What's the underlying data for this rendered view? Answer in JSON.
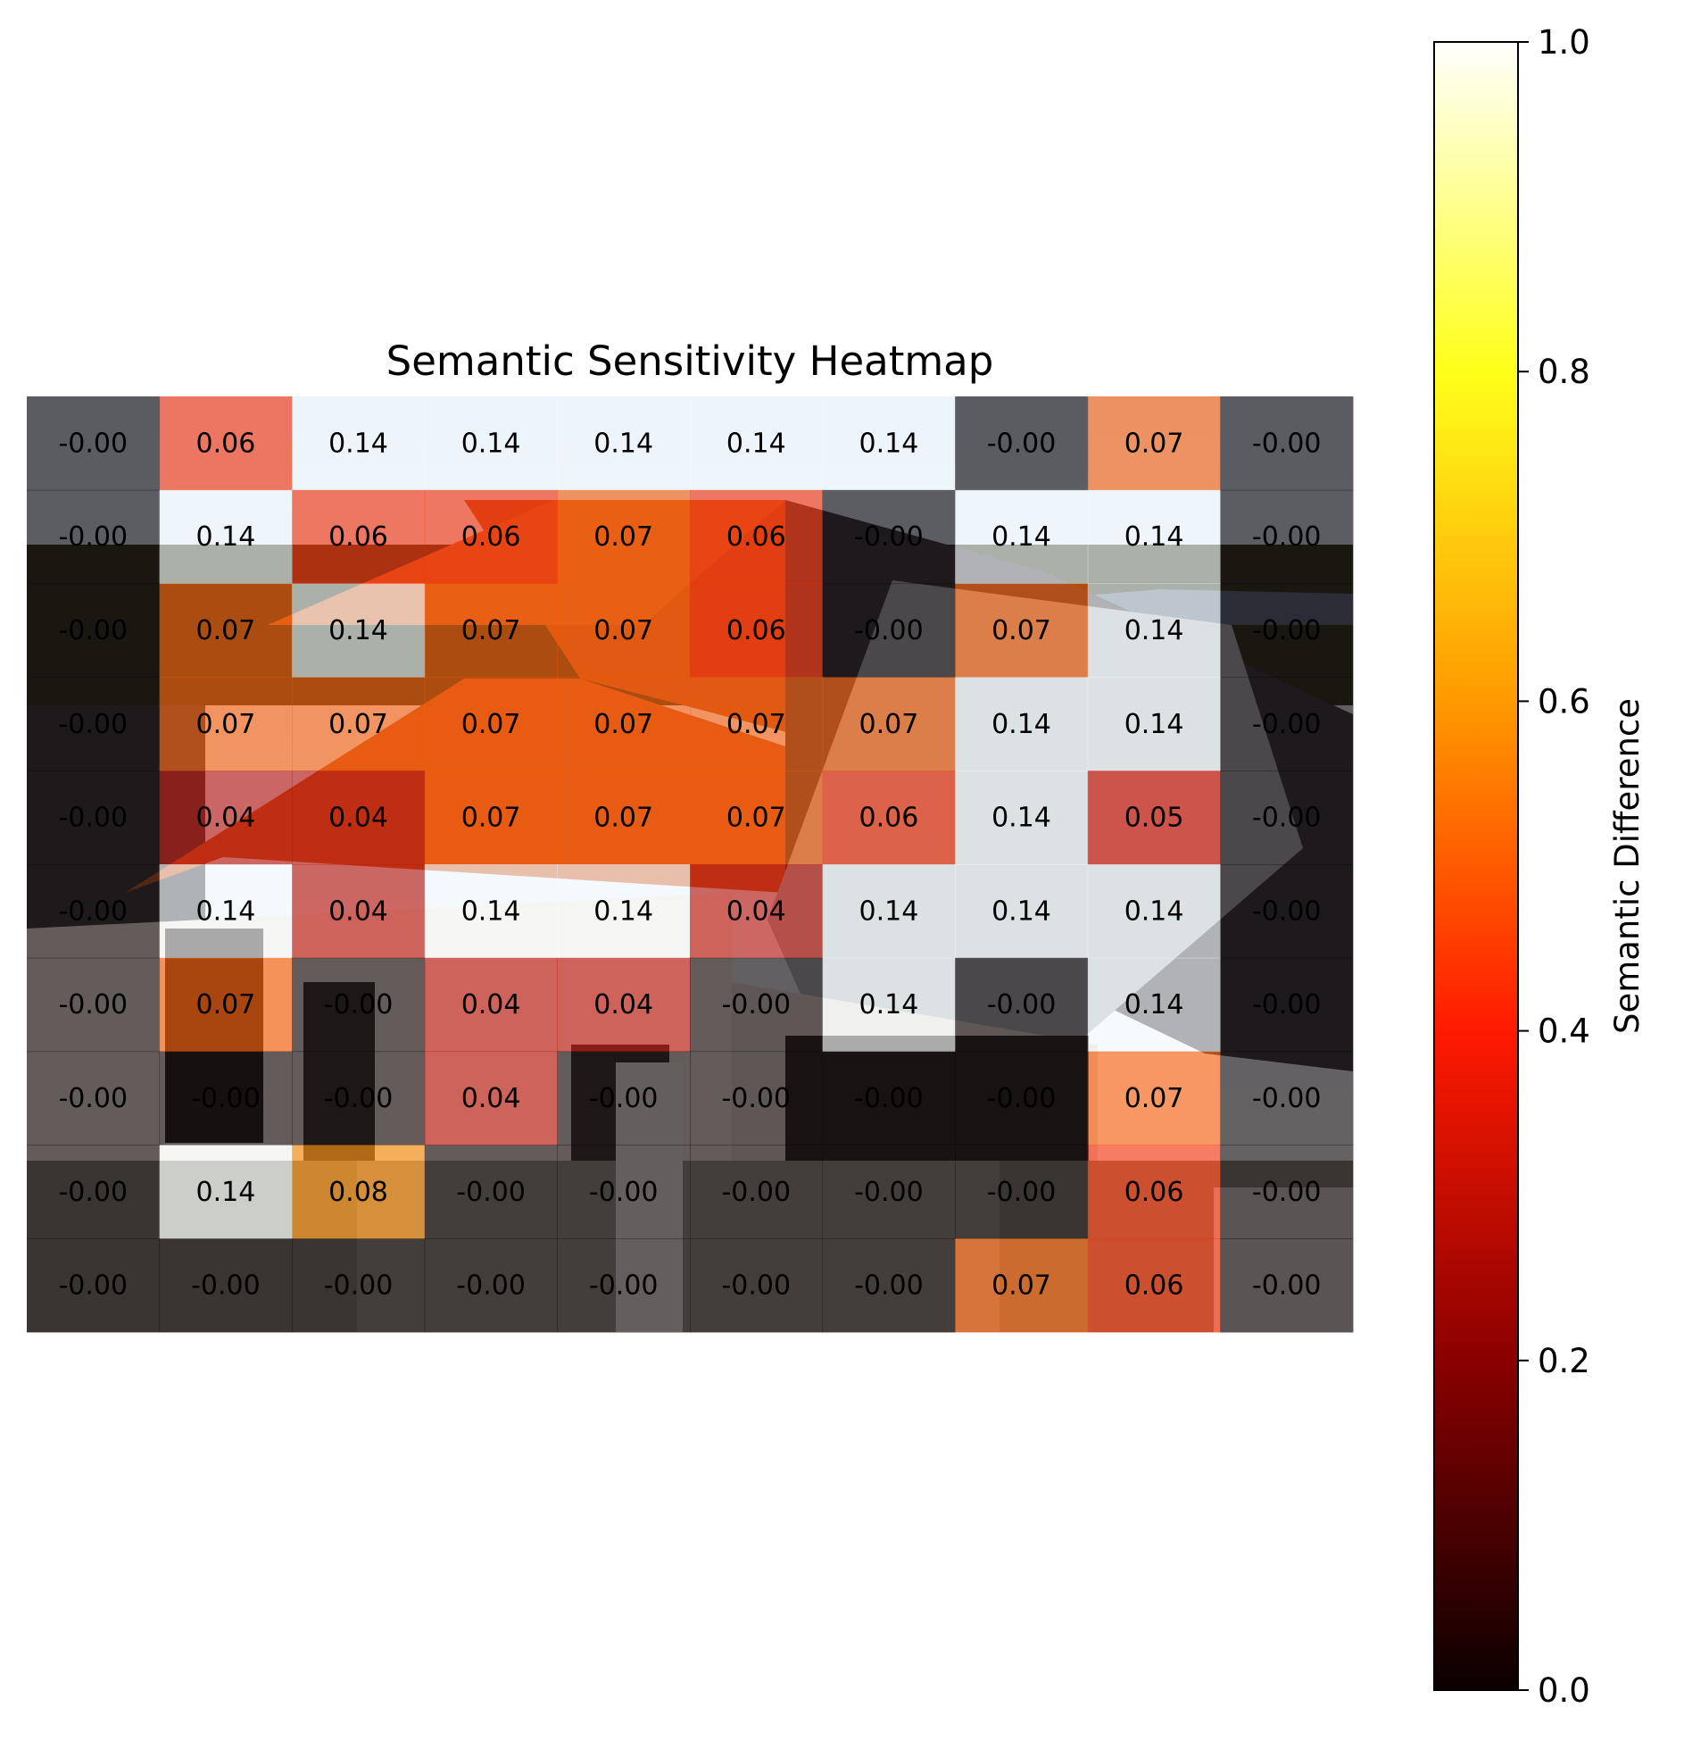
{
  "chart_data": {
    "type": "heatmap",
    "title": "Semantic Sensitivity Heatmap",
    "rows": 10,
    "cols": 10,
    "values": [
      [
        "-0.00",
        "0.06",
        "0.14",
        "0.14",
        "0.14",
        "0.14",
        "0.14",
        "-0.00",
        "0.07",
        "-0.00"
      ],
      [
        "-0.00",
        "0.14",
        "0.06",
        "0.06",
        "0.07",
        "0.06",
        "-0.00",
        "0.14",
        "0.14",
        "-0.00"
      ],
      [
        "-0.00",
        "0.07",
        "0.14",
        "0.07",
        "0.07",
        "0.06",
        "-0.00",
        "0.07",
        "0.14",
        "-0.00"
      ],
      [
        "-0.00",
        "0.07",
        "0.07",
        "0.07",
        "0.07",
        "0.07",
        "0.07",
        "0.14",
        "0.14",
        "-0.00"
      ],
      [
        "-0.00",
        "0.04",
        "0.04",
        "0.07",
        "0.07",
        "0.07",
        "0.06",
        "0.14",
        "0.05",
        "-0.00"
      ],
      [
        "-0.00",
        "0.14",
        "0.04",
        "0.14",
        "0.14",
        "0.04",
        "0.14",
        "0.14",
        "0.14",
        "-0.00"
      ],
      [
        "-0.00",
        "0.07",
        "-0.00",
        "0.04",
        "0.04",
        "-0.00",
        "0.14",
        "-0.00",
        "0.14",
        "-0.00"
      ],
      [
        "-0.00",
        "-0.00",
        "-0.00",
        "0.04",
        "-0.00",
        "-0.00",
        "-0.00",
        "-0.00",
        "0.07",
        "-0.00"
      ],
      [
        "-0.00",
        "0.14",
        "0.08",
        "-0.00",
        "-0.00",
        "-0.00",
        "-0.00",
        "-0.00",
        "0.06",
        "-0.00"
      ],
      [
        "-0.00",
        "-0.00",
        "-0.00",
        "-0.00",
        "-0.00",
        "-0.00",
        "-0.00",
        "0.07",
        "0.06",
        "-0.00"
      ]
    ],
    "colorbar": {
      "label": "Semantic Difference",
      "range": [
        0.0,
        1.0
      ],
      "ticks": [
        "0.0",
        "0.2",
        "0.4",
        "0.6",
        "0.8",
        "1.0"
      ],
      "colormap": "hot",
      "colormap_stops": [
        "#0b0000",
        "#8a0000",
        "#ff1a00",
        "#ff9a00",
        "#ffff1a",
        "#ffffff"
      ]
    },
    "background": "photo of a house with tiled roof (drawn as simplified shapes)"
  }
}
